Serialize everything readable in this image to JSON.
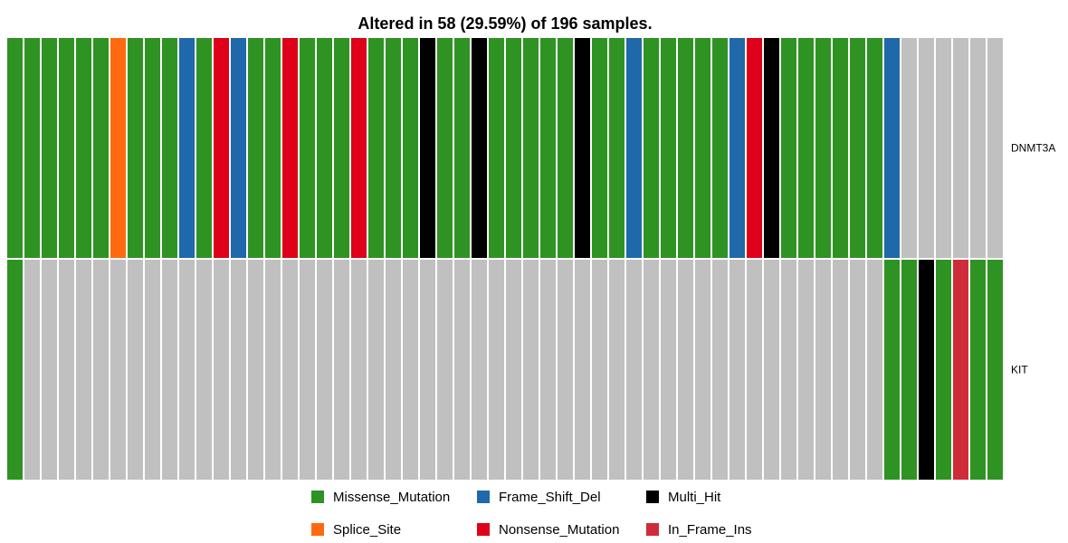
{
  "chart_data": {
    "type": "heatmap",
    "title": "Altered in 58 (29.59%) of 196 samples.",
    "genes": [
      "DNMT3A",
      "KIT"
    ],
    "n_samples_shown": 58,
    "categories_order": [
      "Missense_Mutation",
      "Frame_Shift_Del",
      "Multi_Hit",
      "Splice_Site",
      "Nonsense_Mutation",
      "In_Frame_Ins"
    ],
    "codes": {
      "M": "Missense_Mutation",
      "F": "Frame_Shift_Del",
      "H": "Multi_Hit",
      "S": "Splice_Site",
      "N": "Nonsense_Mutation",
      "I": "In_Frame_Ins",
      "-": "None"
    },
    "matrix": {
      "DNMT3A": [
        "M",
        "M",
        "M",
        "M",
        "M",
        "M",
        "S",
        "M",
        "M",
        "M",
        "F",
        "M",
        "N",
        "F",
        "M",
        "M",
        "N",
        "M",
        "M",
        "M",
        "N",
        "M",
        "M",
        "M",
        "H",
        "M",
        "M",
        "H",
        "M",
        "M",
        "M",
        "M",
        "M",
        "H",
        "M",
        "M",
        "F",
        "M",
        "M",
        "M",
        "M",
        "M",
        "F",
        "N",
        "H",
        "M",
        "M",
        "M",
        "M",
        "M",
        "M",
        "F",
        "-",
        "-",
        "-",
        "-",
        "-",
        "-"
      ],
      "KIT": [
        "M",
        "-",
        "-",
        "-",
        "-",
        "-",
        "-",
        "-",
        "-",
        "-",
        "-",
        "-",
        "-",
        "-",
        "-",
        "-",
        "-",
        "-",
        "-",
        "-",
        "-",
        "-",
        "-",
        "-",
        "-",
        "-",
        "-",
        "-",
        "-",
        "-",
        "-",
        "-",
        "-",
        "-",
        "-",
        "-",
        "-",
        "-",
        "-",
        "-",
        "-",
        "-",
        "-",
        "-",
        "-",
        "-",
        "-",
        "-",
        "-",
        "-",
        "-",
        "M",
        "M",
        "H",
        "M",
        "I",
        "M",
        "M"
      ]
    },
    "colors": {
      "Missense_Mutation": "#2E9322",
      "Frame_Shift_Del": "#1F68A9",
      "Multi_Hit": "#000000",
      "Splice_Site": "#FF6A10",
      "Nonsense_Mutation": "#DE0119",
      "In_Frame_Ins": "#CF2C3A",
      "None": "#C0C0C0"
    },
    "legend": {
      "placement": "bottom",
      "entries": [
        [
          "Missense_Mutation",
          "Frame_Shift_Del",
          "Multi_Hit"
        ],
        [
          "Splice_Site",
          "Nonsense_Mutation",
          "In_Frame_Ins"
        ]
      ]
    }
  }
}
